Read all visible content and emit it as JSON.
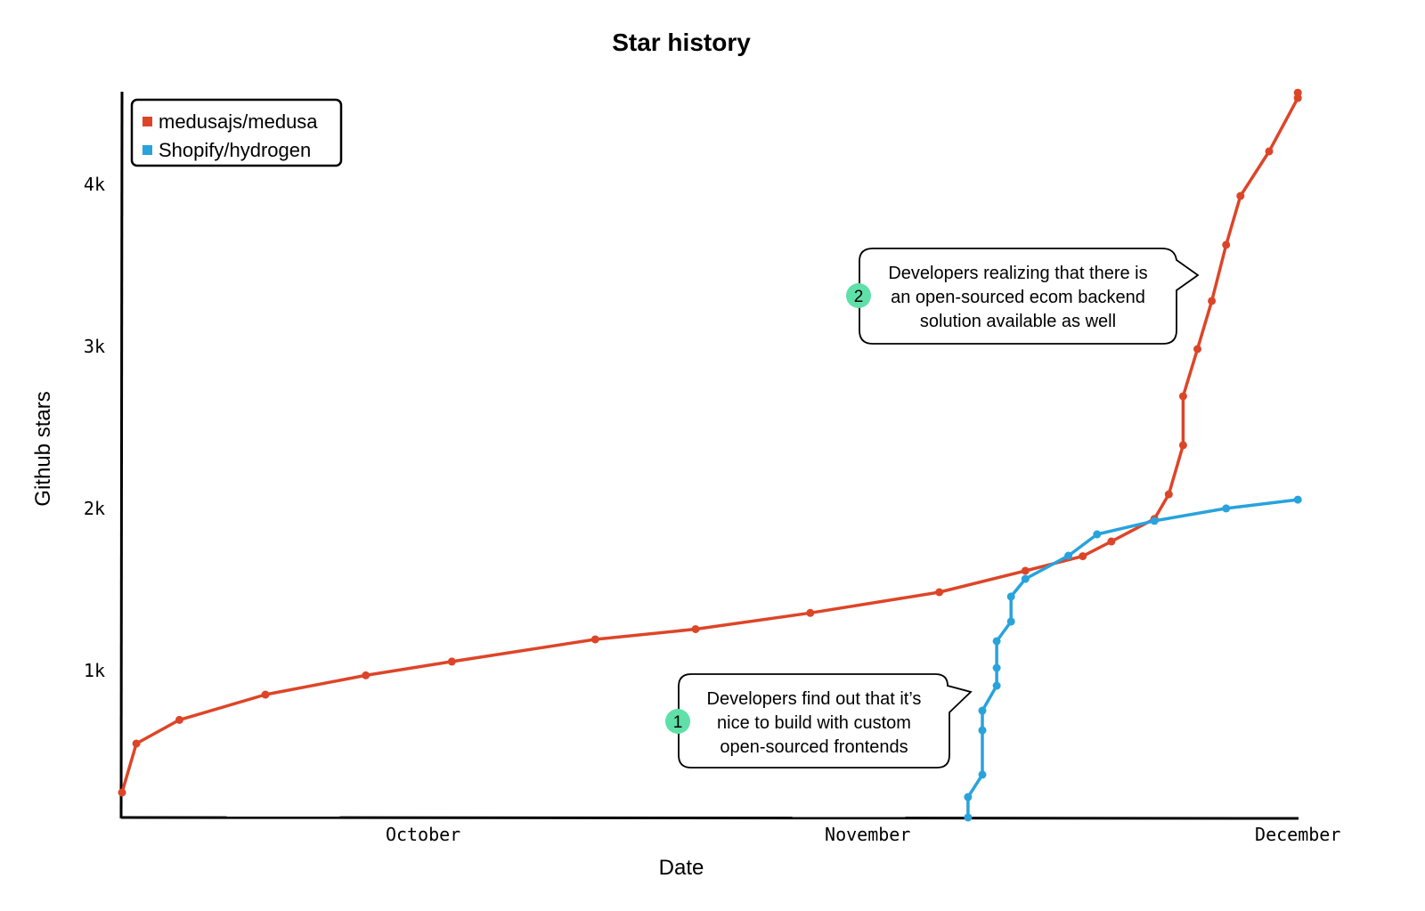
{
  "chart_data": {
    "type": "line",
    "title": "Star history",
    "xlabel": "Date",
    "ylabel": "Github stars",
    "x_ticks": [
      {
        "label": "October",
        "date": "Oct 1"
      },
      {
        "label": "November",
        "date": "Nov 1"
      },
      {
        "label": "December",
        "date": "Dec 1"
      }
    ],
    "y_ticks": [
      {
        "label": "1k",
        "value": 1000
      },
      {
        "label": "2k",
        "value": 2000
      },
      {
        "label": "3k",
        "value": 3000
      },
      {
        "label": "4k",
        "value": 4000
      }
    ],
    "xlim": [
      "Sep 10",
      "Dec 1"
    ],
    "ylim": [
      88,
      4560
    ],
    "grid": false,
    "legend_position": "top-left",
    "series": [
      {
        "name": "medusajs/medusa",
        "color": "#dd4528",
        "points": [
          [
            "Sep 10",
            242
          ],
          [
            "Sep 11",
            544
          ],
          [
            "Sep 14",
            690
          ],
          [
            "Sep 20",
            846
          ],
          [
            "Sep 27",
            965
          ],
          [
            "Oct 3",
            1050
          ],
          [
            "Oct 13",
            1187
          ],
          [
            "Oct 20",
            1250
          ],
          [
            "Oct 28",
            1350
          ],
          [
            "Nov 6",
            1478
          ],
          [
            "Nov 12",
            1610
          ],
          [
            "Nov 16",
            1700
          ],
          [
            "Nov 18",
            1791
          ],
          [
            "Nov 21",
            1930
          ],
          [
            "Nov 22",
            2082
          ],
          [
            "Nov 23",
            2385
          ],
          [
            "Nov 23",
            2687
          ],
          [
            "Nov 24",
            2978
          ],
          [
            "Nov 25",
            3275
          ],
          [
            "Nov 26",
            3621
          ],
          [
            "Nov 27",
            3923
          ],
          [
            "Nov 29",
            4198
          ],
          [
            "Dec 1",
            4527
          ],
          [
            "Dec 1",
            4560
          ]
        ]
      },
      {
        "name": "Shopify/hydrogen",
        "color": "#28a3dc",
        "points": [
          [
            "Nov 8",
            88
          ],
          [
            "Nov 8",
            214
          ],
          [
            "Nov 9",
            352
          ],
          [
            "Nov 9",
            626
          ],
          [
            "Nov 9",
            747
          ],
          [
            "Nov 10",
            901
          ],
          [
            "Nov 10",
            1011
          ],
          [
            "Nov 10",
            1176
          ],
          [
            "Nov 11",
            1297
          ],
          [
            "Nov 11",
            1451
          ],
          [
            "Nov 12",
            1560
          ],
          [
            "Nov 15",
            1703
          ],
          [
            "Nov 17",
            1835
          ],
          [
            "Nov 21",
            1918
          ],
          [
            "Nov 26",
            1995
          ],
          [
            "Dec 1",
            2049
          ]
        ]
      }
    ],
    "annotations": [
      {
        "number": "1",
        "lines": [
          "Developers find out that it’s",
          "nice to build with custom",
          "open-sourced frontends"
        ]
      },
      {
        "number": "2",
        "lines": [
          "Developers realizing that there is",
          "an open-sourced ecom backend",
          "solution available as well"
        ]
      }
    ],
    "badge_color": "#5ee0a8"
  }
}
